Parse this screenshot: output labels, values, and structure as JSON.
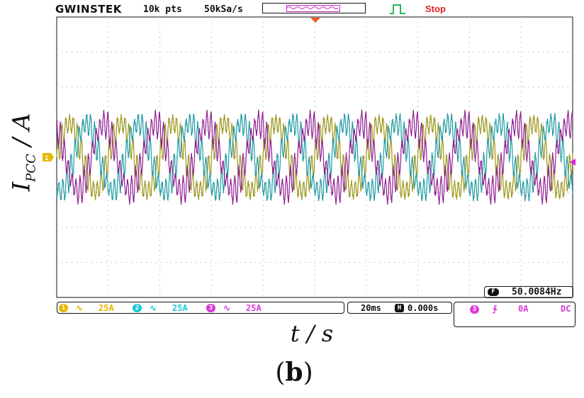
{
  "header": {
    "brand": "GWINSTEK",
    "record_length": "10k pts",
    "sample_rate": "50kSa/s",
    "run_status": "Stop"
  },
  "axes": {
    "ylabel_main": "I",
    "ylabel_sub": "PCC",
    "ylabel_unit": " / A",
    "xlabel": "t / s"
  },
  "caption": {
    "open": "(",
    "letter": "b",
    "close": ")"
  },
  "frequency_readout": {
    "value": "50.0084Hz"
  },
  "channels": [
    {
      "id": "1",
      "coupling_icon": "∿",
      "scale": "25A",
      "color": "#e6b800"
    },
    {
      "id": "2",
      "coupling_icon": "∿",
      "scale": "25A",
      "color": "#1ec8d8"
    },
    {
      "id": "3",
      "coupling_icon": "∿",
      "scale": "25A",
      "color": "#d83ad8"
    }
  ],
  "timebase": {
    "scale": "20ms",
    "position": "0.000s"
  },
  "trigger": {
    "source": "3",
    "slope_icon": "rising-edge-icon",
    "slope_glyph": "∱",
    "level": "0A",
    "coupling": "DC"
  },
  "chart_data": {
    "type": "line",
    "xlabel": "t / s",
    "ylabel": "I_PCC / A",
    "x_unit": "ms",
    "xlim": [
      0,
      200
    ],
    "ylim": [
      -100,
      100
    ],
    "grid": true,
    "grid_divisions": {
      "x": 10,
      "y": 8
    },
    "fundamental_hz": 50.0084,
    "series": [
      {
        "name": "CH1",
        "color": "#9a9418",
        "amplitude": 24,
        "phase_deg": 0,
        "harmonic_amplitude": 8,
        "harmonic_order": 13
      },
      {
        "name": "CH2",
        "color": "#1f9aa2",
        "amplitude": 24,
        "phase_deg": -120,
        "harmonic_amplitude": 8,
        "harmonic_order": 13
      },
      {
        "name": "CH3",
        "color": "#8e1c90",
        "amplitude": 24,
        "phase_deg": 120,
        "harmonic_amplitude": 8,
        "harmonic_order": 13
      }
    ]
  }
}
